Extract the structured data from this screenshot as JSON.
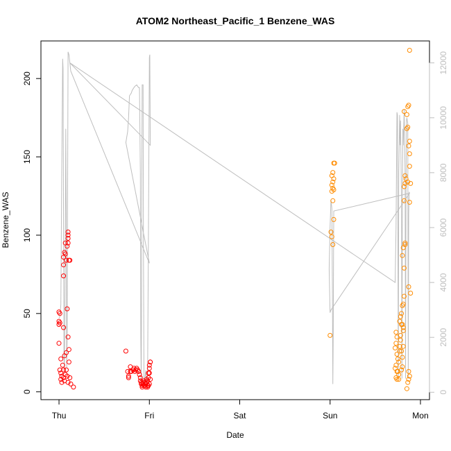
{
  "chart_data": {
    "type": "scatter",
    "title": "ATOM2 Northeast_Pacific_1 Benzene_WAS",
    "xlabel": "Date",
    "ylabel": "Benzene_WAS",
    "x_ticks": [
      {
        "label": "Thu",
        "day": 0
      },
      {
        "label": "Fri",
        "day": 1
      },
      {
        "label": "Sat",
        "day": 2
      },
      {
        "label": "Sun",
        "day": 3
      },
      {
        "label": "Mon",
        "day": 4
      }
    ],
    "xlim_days": [
      -0.2,
      4.1
    ],
    "ylim": [
      -5,
      224
    ],
    "y_ticks": [
      0,
      50,
      100,
      150,
      200
    ],
    "y2_ticks": [
      0,
      2000,
      4000,
      6000,
      8000,
      10000,
      12000
    ],
    "y2lim": [
      -270,
      12800
    ],
    "grid": false,
    "series": [
      {
        "color": "#ff0000",
        "marker": "open-circle",
        "points": [
          [
            0.0,
            51
          ],
          [
            0.01,
            50
          ],
          [
            0.0,
            45
          ],
          [
            0.0,
            43
          ],
          [
            0.01,
            44
          ],
          [
            0.0,
            31
          ],
          [
            0.02,
            12
          ],
          [
            0.03,
            10
          ],
          [
            0.02,
            8
          ],
          [
            0.03,
            6
          ],
          [
            0.01,
            14
          ],
          [
            0.02,
            21
          ],
          [
            0.04,
            17
          ],
          [
            0.05,
            41
          ],
          [
            0.05,
            74
          ],
          [
            0.05,
            81
          ],
          [
            0.05,
            86
          ],
          [
            0.06,
            89
          ],
          [
            0.07,
            88
          ],
          [
            0.07,
            95
          ],
          [
            0.08,
            84
          ],
          [
            0.09,
            93
          ],
          [
            0.1,
            95
          ],
          [
            0.1,
            98
          ],
          [
            0.1,
            100
          ],
          [
            0.1,
            102
          ],
          [
            0.11,
            84
          ],
          [
            0.12,
            84
          ],
          [
            0.09,
            53
          ],
          [
            0.1,
            35
          ],
          [
            0.11,
            27
          ],
          [
            0.08,
            25
          ],
          [
            0.06,
            23
          ],
          [
            0.11,
            19
          ],
          [
            0.05,
            14
          ],
          [
            0.08,
            14
          ],
          [
            0.07,
            11
          ],
          [
            0.09,
            10
          ],
          [
            0.12,
            9
          ],
          [
            0.05,
            9
          ],
          [
            0.06,
            7
          ],
          [
            0.1,
            6
          ],
          [
            0.13,
            5
          ],
          [
            0.16,
            3
          ],
          [
            0.74,
            26
          ],
          [
            0.76,
            13
          ],
          [
            0.77,
            10
          ],
          [
            0.77,
            9
          ],
          [
            0.79,
            16
          ],
          [
            0.79,
            13
          ],
          [
            0.8,
            13
          ],
          [
            0.82,
            14
          ],
          [
            0.83,
            15
          ],
          [
            0.84,
            13
          ],
          [
            0.85,
            14
          ],
          [
            0.86,
            15
          ],
          [
            0.87,
            14
          ],
          [
            0.88,
            13
          ],
          [
            0.89,
            11
          ],
          [
            0.9,
            9
          ],
          [
            0.9,
            7
          ],
          [
            0.91,
            6
          ],
          [
            0.91,
            5
          ],
          [
            0.92,
            4
          ],
          [
            0.92,
            3
          ],
          [
            0.93,
            6
          ],
          [
            0.93,
            5
          ],
          [
            0.94,
            4
          ],
          [
            0.94,
            7
          ],
          [
            0.95,
            4
          ],
          [
            0.95,
            6
          ],
          [
            0.96,
            3
          ],
          [
            0.96,
            5
          ],
          [
            0.97,
            8
          ],
          [
            0.97,
            6
          ],
          [
            0.98,
            4
          ],
          [
            0.98,
            7
          ],
          [
            0.99,
            9
          ],
          [
            0.99,
            12
          ],
          [
            1.0,
            15
          ],
          [
            1.0,
            17
          ],
          [
            1.01,
            19
          ],
          [
            1.01,
            19
          ],
          [
            1.0,
            12
          ],
          [
            1.01,
            8
          ],
          [
            1.0,
            5
          ],
          [
            0.99,
            4
          ],
          [
            0.98,
            3
          ]
        ]
      },
      {
        "color": "#ff8c00",
        "marker": "open-circle",
        "points": [
          [
            3.0,
            36
          ],
          [
            3.01,
            102
          ],
          [
            3.02,
            99
          ],
          [
            3.03,
            94
          ],
          [
            3.04,
            110
          ],
          [
            3.03,
            122
          ],
          [
            3.02,
            128
          ],
          [
            3.03,
            130
          ],
          [
            3.04,
            129
          ],
          [
            3.02,
            132
          ],
          [
            3.03,
            134
          ],
          [
            3.04,
            136
          ],
          [
            3.02,
            138
          ],
          [
            3.03,
            140
          ],
          [
            3.04,
            146
          ],
          [
            3.05,
            146
          ],
          [
            3.73,
            38
          ],
          [
            3.74,
            35
          ],
          [
            3.73,
            31
          ],
          [
            3.72,
            28
          ],
          [
            3.74,
            24
          ],
          [
            3.75,
            21
          ],
          [
            3.76,
            19
          ],
          [
            3.73,
            17
          ],
          [
            3.72,
            15
          ],
          [
            3.74,
            13
          ],
          [
            3.75,
            13
          ],
          [
            3.76,
            11
          ],
          [
            3.73,
            9
          ],
          [
            3.74,
            8
          ],
          [
            3.76,
            8
          ],
          [
            3.77,
            26
          ],
          [
            3.77,
            29
          ],
          [
            3.78,
            33
          ],
          [
            3.78,
            36
          ],
          [
            3.79,
            43
          ],
          [
            3.8,
            43
          ],
          [
            3.79,
            50
          ],
          [
            3.8,
            55
          ],
          [
            3.81,
            56
          ],
          [
            3.8,
            87
          ],
          [
            3.81,
            92
          ],
          [
            3.82,
            61
          ],
          [
            3.82,
            79
          ],
          [
            3.83,
            94
          ],
          [
            3.83,
            95
          ],
          [
            3.82,
            122
          ],
          [
            3.82,
            131
          ],
          [
            3.83,
            133
          ],
          [
            3.84,
            136
          ],
          [
            3.83,
            138
          ],
          [
            3.82,
            179
          ],
          [
            3.85,
            168
          ],
          [
            3.86,
            169
          ],
          [
            3.85,
            177
          ],
          [
            3.86,
            182
          ],
          [
            3.87,
            183
          ],
          [
            3.88,
            160
          ],
          [
            3.87,
            157
          ],
          [
            3.88,
            152
          ],
          [
            3.88,
            144
          ],
          [
            3.86,
            134
          ],
          [
            3.89,
            133
          ],
          [
            3.88,
            121
          ],
          [
            3.87,
            67
          ],
          [
            3.89,
            63
          ],
          [
            3.85,
            2
          ],
          [
            3.86,
            6
          ],
          [
            3.87,
            8
          ],
          [
            3.88,
            10
          ],
          [
            3.87,
            13
          ],
          [
            3.8,
            22
          ],
          [
            3.79,
            26
          ],
          [
            3.81,
            29
          ],
          [
            3.81,
            39
          ],
          [
            3.78,
            48
          ],
          [
            3.77,
            45
          ],
          [
            3.81,
            41
          ],
          [
            3.79,
            14
          ],
          [
            3.8,
            16
          ],
          [
            3.88,
            218
          ]
        ]
      }
    ],
    "secondary_series": {
      "color": "#bebebe",
      "type": "line",
      "points": [
        [
          0.0,
          2700
        ],
        [
          0.01,
          2750
        ],
        [
          0.02,
          3200
        ],
        [
          0.03,
          8000
        ],
        [
          0.04,
          12150
        ],
        [
          0.045,
          11800
        ],
        [
          0.05,
          6000
        ],
        [
          0.055,
          1200
        ],
        [
          0.06,
          800
        ],
        [
          0.07,
          6000
        ],
        [
          0.075,
          9600
        ],
        [
          0.08,
          6500
        ],
        [
          0.085,
          900
        ],
        [
          0.09,
          2000
        ],
        [
          0.1,
          12400
        ],
        [
          0.11,
          12300
        ],
        [
          0.12,
          12000
        ],
        [
          0.13,
          11700
        ],
        [
          1.0,
          4700
        ],
        [
          0.74,
          9100
        ],
        [
          0.75,
          9300
        ],
        [
          0.76,
          9500
        ],
        [
          0.77,
          10000
        ],
        [
          0.78,
          10800
        ],
        [
          0.8,
          10900
        ],
        [
          0.81,
          11000
        ],
        [
          0.82,
          11050
        ],
        [
          0.83,
          11100
        ],
        [
          0.84,
          11150
        ],
        [
          0.86,
          11200
        ],
        [
          0.88,
          11100
        ],
        [
          0.89,
          11100
        ],
        [
          0.9,
          8000
        ],
        [
          0.905,
          2000
        ],
        [
          0.91,
          300
        ],
        [
          0.915,
          6000
        ],
        [
          0.92,
          11200
        ],
        [
          0.93,
          11200
        ],
        [
          0.935,
          5000
        ],
        [
          0.94,
          300
        ],
        [
          0.95,
          500
        ],
        [
          0.96,
          800
        ],
        [
          0.97,
          200
        ],
        [
          0.98,
          500
        ],
        [
          0.99,
          6000
        ],
        [
          1.0,
          12200
        ],
        [
          1.005,
          12300
        ],
        [
          1.01,
          9000
        ],
        [
          0.12,
          12000
        ],
        [
          3.72,
          4000
        ],
        [
          3.73,
          6000
        ],
        [
          3.74,
          10200
        ],
        [
          3.745,
          10100
        ],
        [
          3.75,
          6000
        ],
        [
          3.755,
          500
        ],
        [
          3.76,
          8000
        ],
        [
          3.77,
          10100
        ],
        [
          3.775,
          9000
        ],
        [
          3.78,
          9900
        ],
        [
          3.79,
          7000
        ],
        [
          3.795,
          500
        ],
        [
          3.8,
          6000
        ],
        [
          3.805,
          9600
        ],
        [
          3.81,
          9000
        ],
        [
          3.82,
          10300
        ],
        [
          3.83,
          8000
        ],
        [
          3.835,
          500
        ],
        [
          3.84,
          7000
        ],
        [
          3.845,
          9900
        ],
        [
          3.85,
          10000
        ],
        [
          3.86,
          9800
        ],
        [
          3.865,
          500
        ],
        [
          3.87,
          6500
        ],
        [
          3.875,
          7300
        ],
        [
          3.88,
          7250
        ],
        [
          3.04,
          6600
        ],
        [
          3.035,
          2200
        ],
        [
          3.03,
          300
        ],
        [
          3.025,
          4000
        ],
        [
          3.02,
          6700
        ],
        [
          3.01,
          7000
        ],
        [
          3.0,
          6000
        ],
        [
          2.99,
          4500
        ],
        [
          3.0,
          2900
        ],
        [
          3.01,
          3000
        ],
        [
          3.88,
          7250
        ],
        [
          3.87,
          7200
        ]
      ]
    }
  }
}
